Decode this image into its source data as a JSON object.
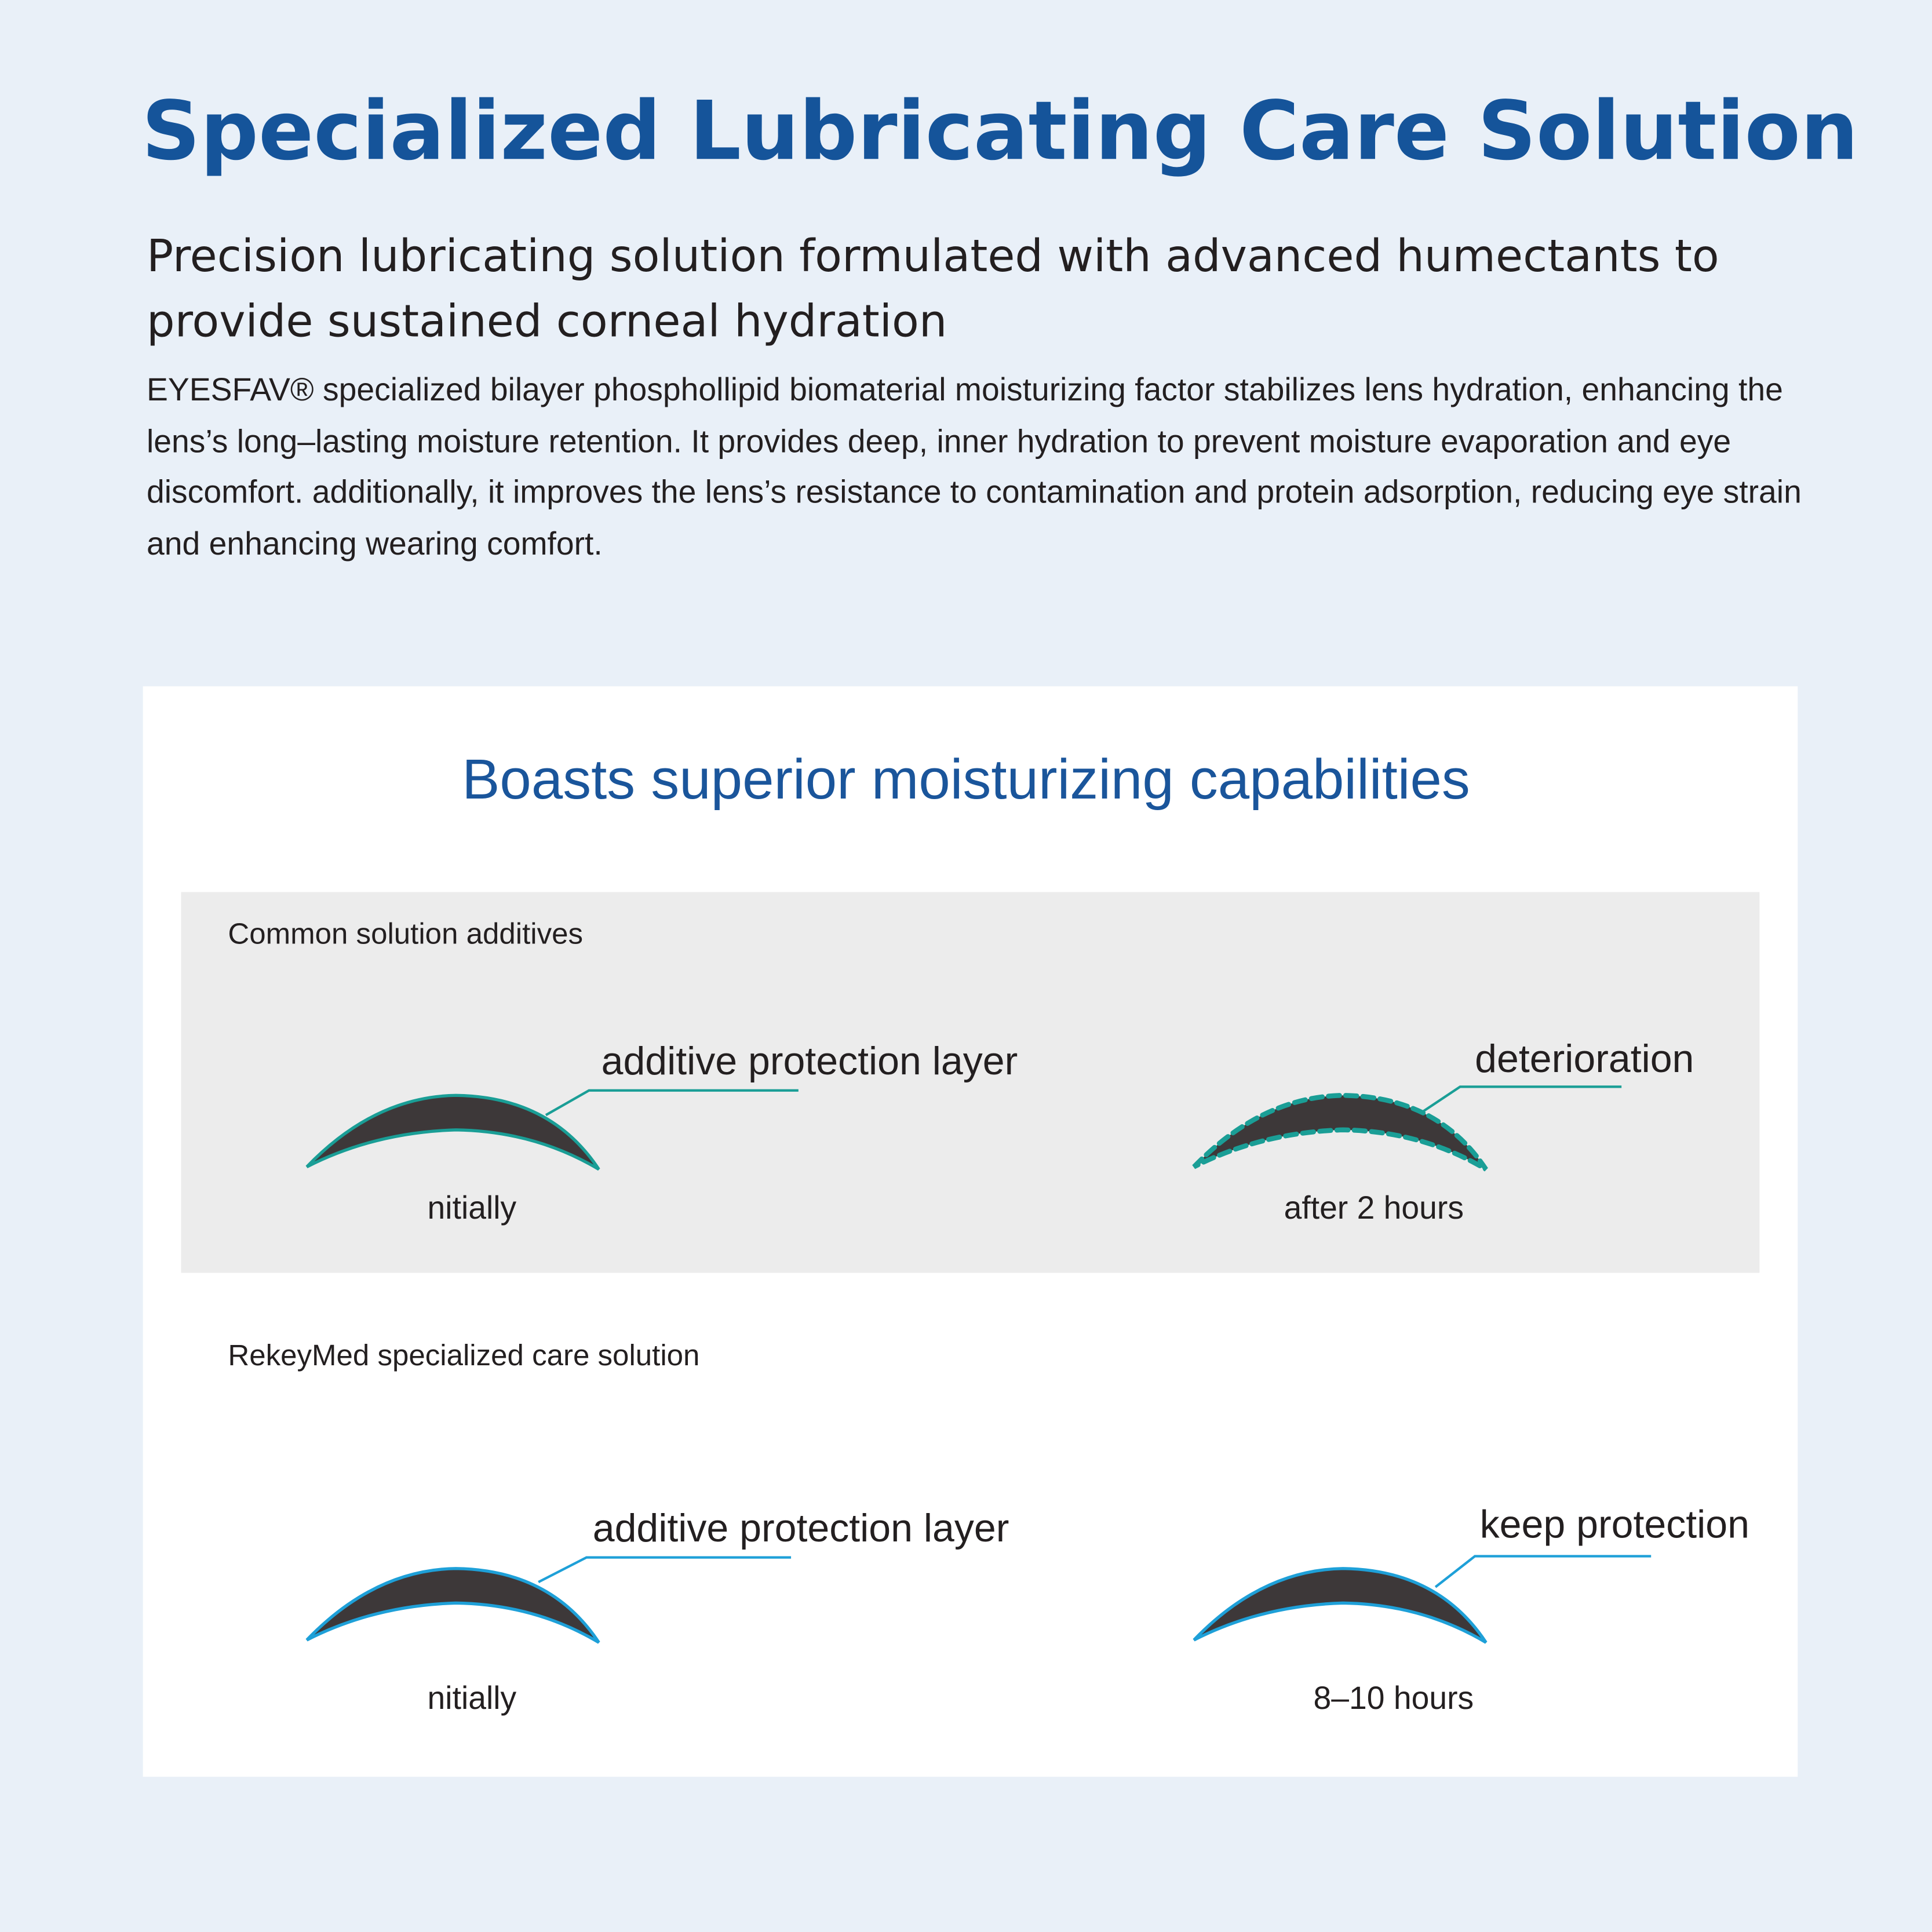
{
  "header": {
    "title": "Specialized Lubricating Care Solution",
    "subtitle": "Precision lubricating solution formulated with advanced humectants to provide sustained corneal hydration",
    "body": "EYESFAV® specialized bilayer phosphollipid biomaterial moisturizing factor stabilizes lens hydration, enhancing the lens’s long–lasting moisture retention. It provides deep, inner hydration to prevent moisture evaporation and eye discomfort. additionally, it improves the lens’s resistance to contamination and protein adsorption, reducing eye strain and enhancing wearing comfort."
  },
  "card": {
    "title": "Boasts superior moisturizing capabilities",
    "common": {
      "label": "Common solution additives",
      "left_annotation": "additive protection layer",
      "left_caption": "nitially",
      "right_annotation": "deterioration",
      "right_caption": "after 2 hours",
      "color": "#1a9e96"
    },
    "rekeymed": {
      "label": "RekeyMed specialized care solution",
      "left_annotation": "additive protection layer",
      "left_caption": "nitially",
      "right_annotation": "keep protection",
      "right_caption": "8–10 hours",
      "color": "#1ea0d8"
    }
  },
  "colors": {
    "title": "#15549a",
    "lens": "#3d3839",
    "background": "#e9f0f8"
  }
}
